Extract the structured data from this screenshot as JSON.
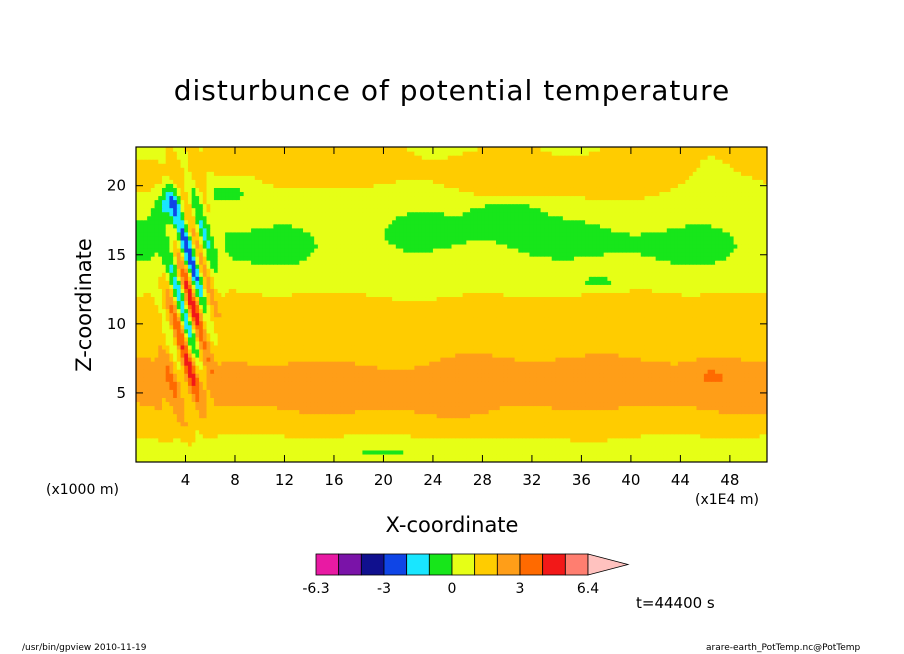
{
  "chart_data": {
    "type": "heatmap",
    "title": "disturbunce of potential temperature",
    "xlabel": "X-coordinate",
    "ylabel": "Z-coordinate",
    "x_unit_label": "(x1000 m)",
    "x_scale_label": "(x1E4 m)",
    "xlim": [
      0,
      51
    ],
    "ylim": [
      0,
      22.8
    ],
    "x_ticks": [
      4,
      8,
      12,
      16,
      20,
      24,
      28,
      32,
      36,
      40,
      44,
      48
    ],
    "y_ticks": [
      5,
      10,
      15,
      20
    ],
    "colorbar": {
      "levels": [
        -6.3,
        -5.2,
        -4.1,
        -3,
        -2,
        -1,
        0,
        1,
        2,
        3,
        4.1,
        5.2,
        6.4
      ],
      "tick_labels": [
        "-6.3",
        "-3",
        "0",
        "3",
        "6.4"
      ],
      "tick_positions": [
        -6.3,
        -3,
        0,
        3,
        6.4
      ],
      "colors": [
        "#e81aa3",
        "#7a13a8",
        "#10108e",
        "#0f45e6",
        "#19e6ff",
        "#17e61a",
        "#e6ff16",
        "#ffcc00",
        "#ff9e18",
        "#ff6a00",
        "#f21818",
        "#ff7e70",
        "#ffc2bf"
      ]
    },
    "time_label": "t=44400 s",
    "regions": [
      {
        "level": 1,
        "x": [
          0,
          51
        ],
        "z": [
          9.5,
          12
        ]
      },
      {
        "level": 2,
        "x": [
          0,
          51
        ],
        "z": [
          2,
          9
        ]
      },
      {
        "level": -1,
        "x": [
          0,
          51
        ],
        "z": [
          12,
          21
        ]
      },
      {
        "level": -2,
        "x": [
          2,
          6
        ],
        "z": [
          17,
          21
        ]
      }
    ]
  },
  "footer": {
    "left": "/usr/bin/gpview   2010-11-19",
    "right": "arare-earth_PotTemp.nc@PotTemp"
  }
}
